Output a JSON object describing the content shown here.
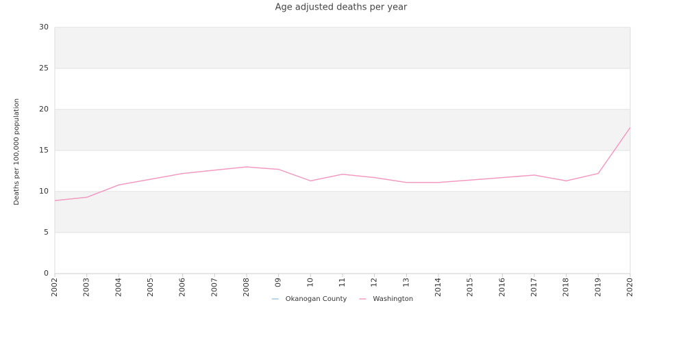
{
  "chart_data": {
    "type": "line",
    "title": "Age adjusted deaths per year",
    "y_label": "Deaths per 100,000 population",
    "categories": [
      "2002",
      "2003",
      "2004",
      "2005",
      "2006",
      "2007",
      "2008",
      "09",
      "10",
      "11",
      "12",
      "13",
      "2014",
      "2015",
      "2016",
      "2017",
      "2018",
      "2019",
      "2020"
    ],
    "series": [
      {
        "name": "Okanogan County",
        "color": "#9ecae1",
        "values": [
          null,
          null,
          null,
          null,
          null,
          null,
          null,
          null,
          null,
          null,
          null,
          null,
          null,
          null,
          null,
          null,
          null,
          null,
          null
        ]
      },
      {
        "name": "Washington",
        "color": "#f49ac2",
        "values": [
          8.9,
          9.3,
          10.8,
          11.5,
          12.2,
          12.6,
          13.0,
          12.7,
          11.3,
          12.1,
          11.7,
          11.1,
          11.1,
          11.4,
          11.7,
          12.0,
          11.3,
          12.2,
          17.8
        ]
      }
    ],
    "ylim": [
      0,
      30
    ],
    "yticks": [
      0,
      5,
      10,
      15,
      20,
      25,
      30
    ],
    "grid": true
  }
}
